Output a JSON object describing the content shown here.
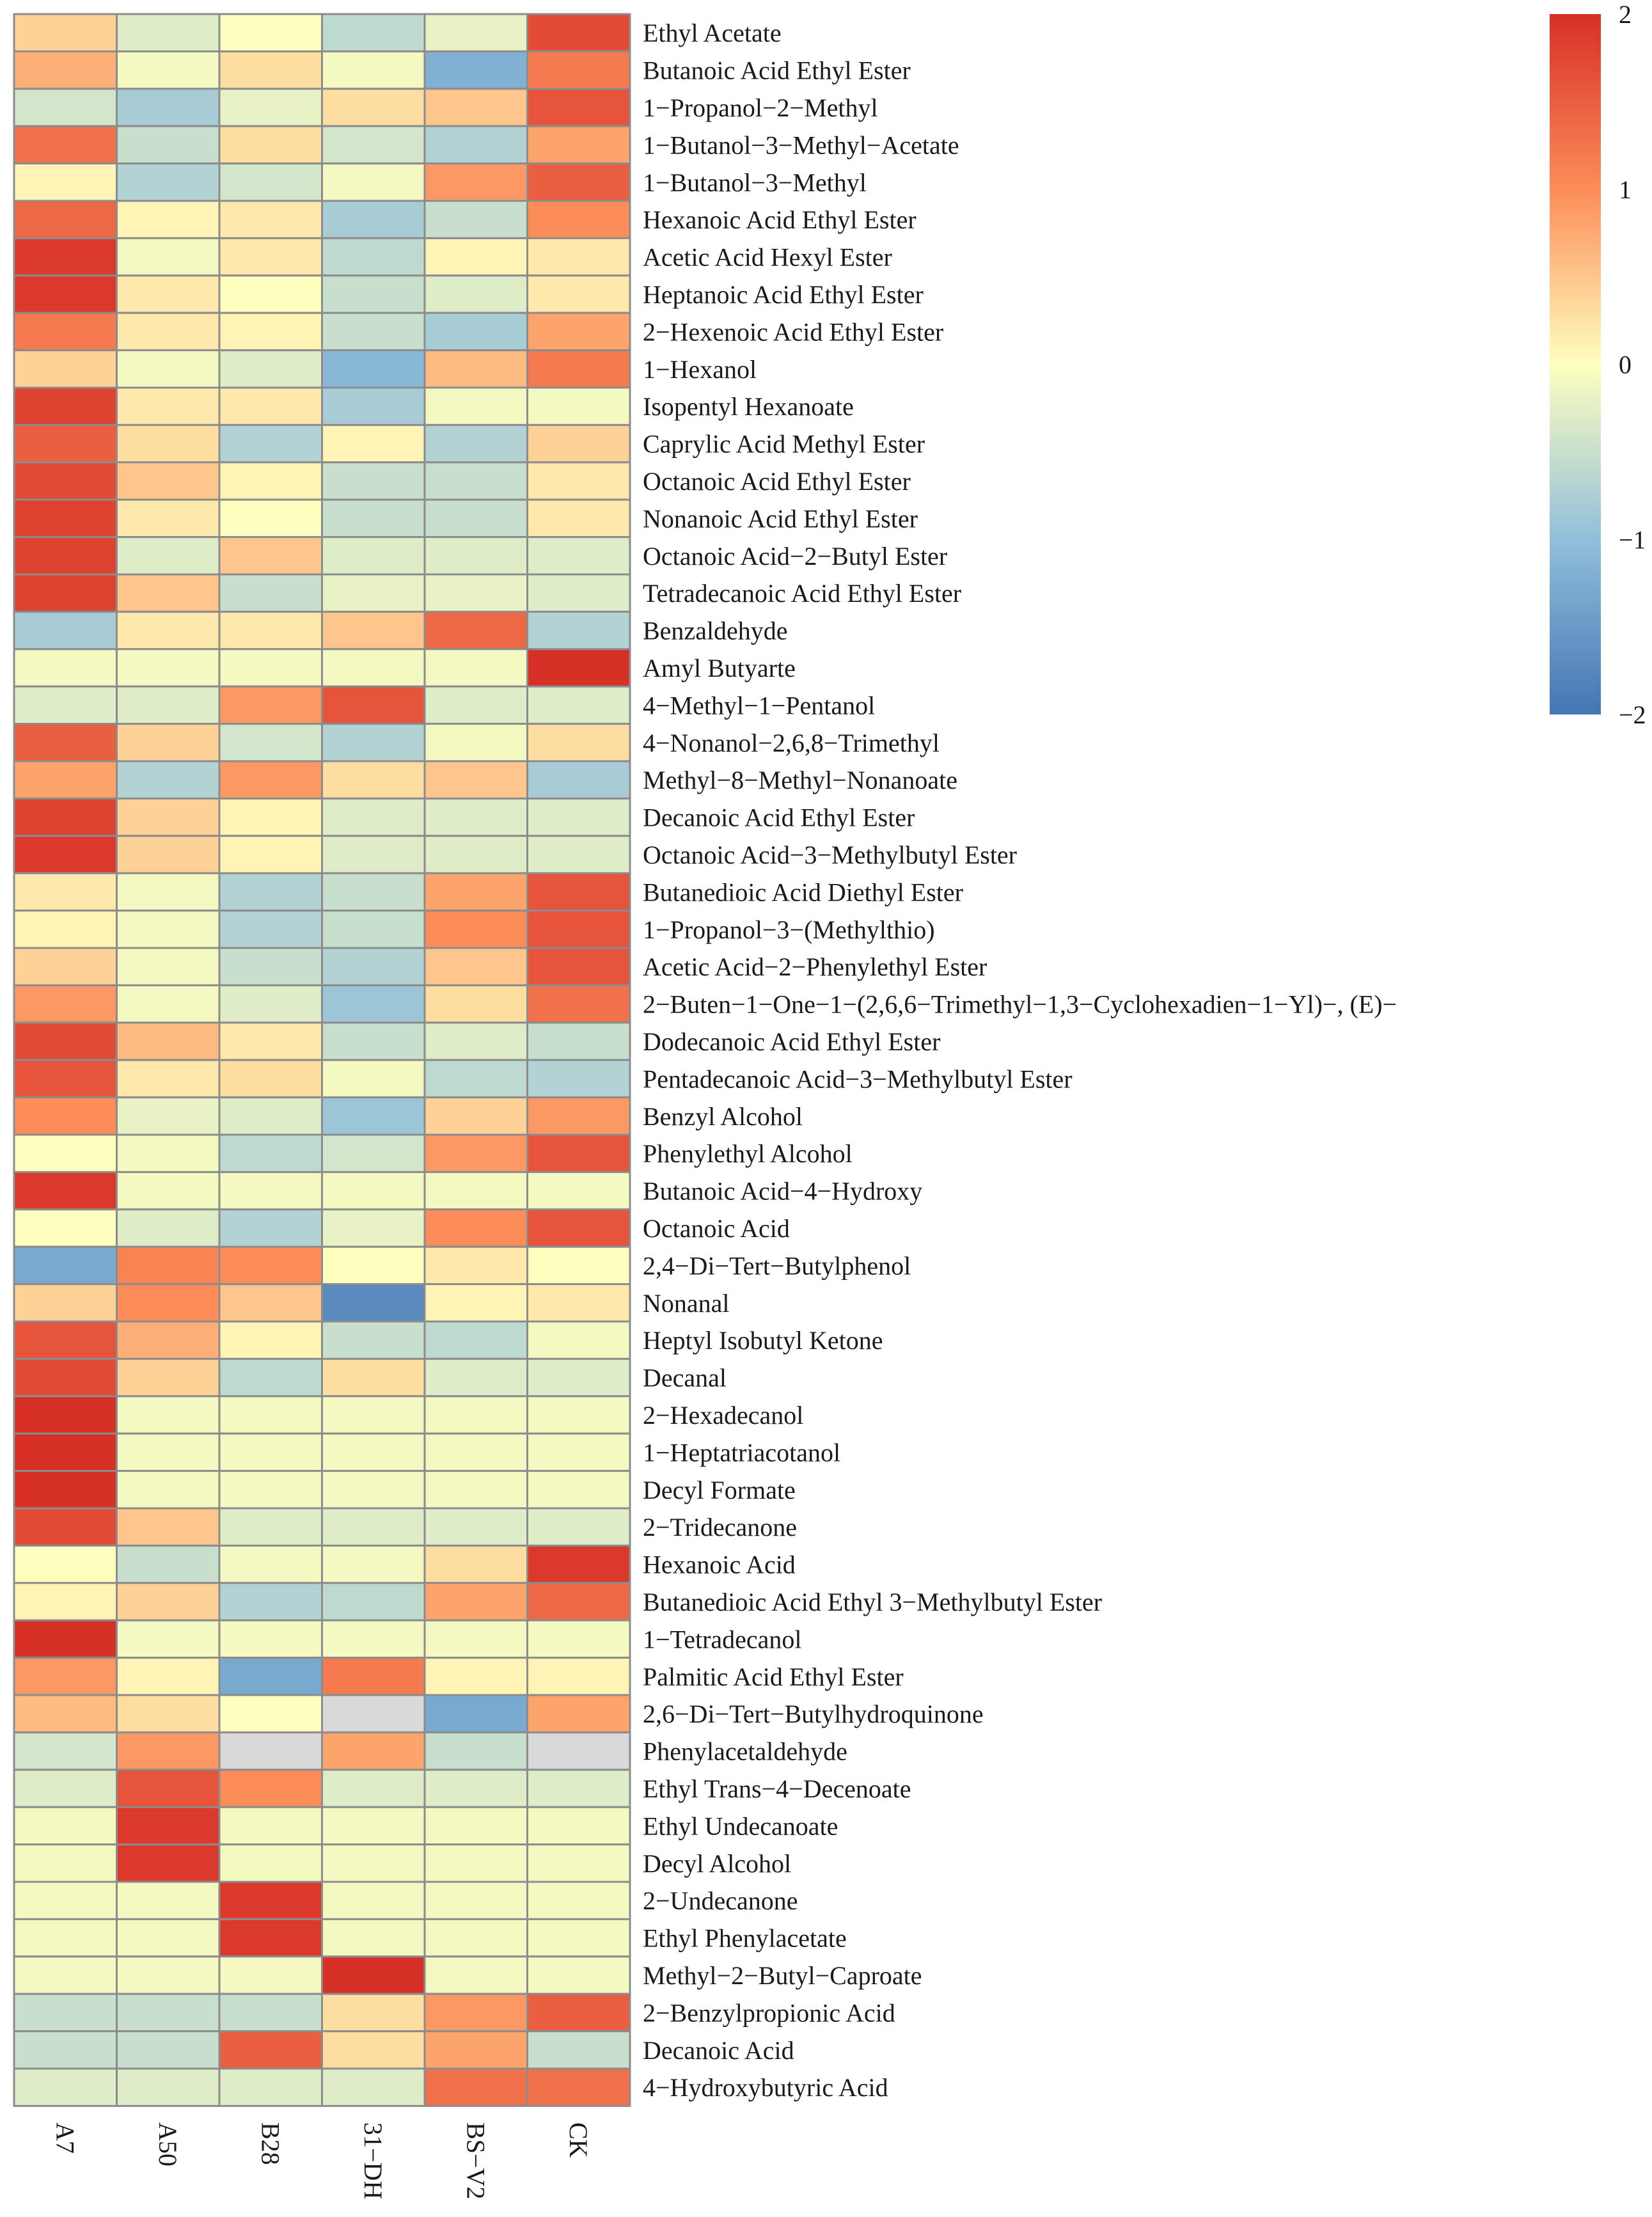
{
  "chart_data": {
    "type": "heatmap",
    "columns": [
      "A7",
      "A50",
      "B28",
      "31−DH",
      "BS−V2",
      "CK"
    ],
    "rows": [
      "Ethyl Acetate",
      "Butanoic Acid Ethyl Ester",
      "1−Propanol−2−Methyl",
      "1−Butanol−3−Methyl−Acetate",
      "1−Butanol−3−Methyl",
      "Hexanoic Acid Ethyl Ester",
      "Acetic Acid Hexyl Ester",
      "Heptanoic Acid Ethyl Ester",
      "2−Hexenoic Acid Ethyl Ester",
      "1−Hexanol",
      "Isopentyl Hexanoate",
      "Caprylic Acid Methyl Ester",
      "Octanoic Acid Ethyl Ester",
      "Nonanoic Acid Ethyl Ester",
      "Octanoic Acid−2−Butyl Ester",
      "Tetradecanoic Acid Ethyl Ester",
      "Benzaldehyde",
      "Amyl Butyarte",
      "4−Methyl−1−Pentanol",
      "4−Nonanol−2,6,8−Trimethyl",
      " Methyl−8−Methyl−Nonanoate",
      "Decanoic Acid Ethyl Ester",
      "Octanoic Acid−3−Methylbutyl Ester",
      "Butanedioic Acid Diethyl Ester",
      "1−Propanol−3−(Methylthio)",
      "Acetic Acid−2−Phenylethyl Ester",
      "2−Buten−1−One−1−(2,6,6−Trimethyl−1,3−Cyclohexadien−1−Yl)−, (E)−",
      "Dodecanoic Acid Ethyl Ester",
      "Pentadecanoic Acid−3−Methylbutyl Ester",
      "Benzyl Alcohol",
      "Phenylethyl Alcohol",
      "Butanoic Acid−4−Hydroxy",
      "Octanoic Acid",
      "2,4−Di−Tert−Butylphenol",
      "Nonanal",
      "Heptyl Isobutyl Ketone",
      "Decanal",
      "2−Hexadecanol",
      "1−Heptatriacotanol",
      "Decyl Formate",
      "2−Tridecanone",
      "Hexanoic Acid",
      "Butanedioic Acid Ethyl 3−Methylbutyl Ester",
      "1−Tetradecanol",
      "Palmitic Acid Ethyl Ester",
      "2,6−Di−Tert−Butylhydroquinone",
      "Phenylacetaldehyde",
      "Ethyl Trans−4−Decenoate",
      "Ethyl Undecanoate",
      "Decyl Alcohol",
      "2−Undecanone",
      "Ethyl Phenylacetate",
      "Methyl−2−Butyl−Caproate",
      "2−Benzylpropionic Acid",
      "Decanoic Acid",
      "4−Hydroxybutyric Acid"
    ],
    "values": [
      [
        0.4,
        -0.3,
        0.0,
        -0.6,
        -0.2,
        1.7
      ],
      [
        0.7,
        -0.1,
        0.3,
        -0.1,
        -1.2,
        1.2
      ],
      [
        -0.4,
        -0.8,
        -0.2,
        0.3,
        0.5,
        1.6
      ],
      [
        1.3,
        -0.5,
        0.3,
        -0.4,
        -0.7,
        0.8
      ],
      [
        0.1,
        -0.7,
        -0.4,
        -0.1,
        0.9,
        1.5
      ],
      [
        1.4,
        0.1,
        0.2,
        -0.8,
        -0.5,
        1.0
      ],
      [
        1.9,
        -0.1,
        0.2,
        -0.6,
        0.1,
        0.2
      ],
      [
        1.9,
        0.2,
        0.0,
        -0.5,
        -0.3,
        0.2
      ],
      [
        1.2,
        0.2,
        0.1,
        -0.5,
        -0.8,
        0.8
      ],
      [
        0.4,
        -0.1,
        -0.3,
        -1.1,
        0.6,
        1.2
      ],
      [
        1.8,
        0.2,
        0.2,
        -0.8,
        -0.1,
        -0.1
      ],
      [
        1.5,
        0.3,
        -0.7,
        0.1,
        -0.7,
        0.4
      ],
      [
        1.7,
        0.5,
        0.1,
        -0.5,
        -0.5,
        0.2
      ],
      [
        1.8,
        0.2,
        0.0,
        -0.5,
        -0.5,
        0.2
      ],
      [
        1.8,
        -0.3,
        0.5,
        -0.3,
        -0.3,
        -0.3
      ],
      [
        1.8,
        0.5,
        -0.5,
        -0.2,
        -0.2,
        -0.3
      ],
      [
        -0.8,
        0.2,
        0.2,
        0.5,
        1.4,
        -0.7
      ],
      [
        -0.1,
        -0.1,
        -0.1,
        -0.1,
        -0.1,
        2.0
      ],
      [
        -0.3,
        -0.3,
        0.9,
        1.6,
        -0.3,
        -0.3
      ],
      [
        1.5,
        0.4,
        -0.4,
        -0.7,
        -0.1,
        0.3
      ],
      [
        0.8,
        -0.7,
        0.9,
        0.3,
        0.5,
        -0.8
      ],
      [
        1.8,
        0.4,
        0.1,
        -0.3,
        -0.3,
        -0.3
      ],
      [
        1.9,
        0.4,
        0.1,
        -0.3,
        -0.3,
        -0.3
      ],
      [
        0.2,
        -0.1,
        -0.7,
        -0.5,
        0.8,
        1.6
      ],
      [
        0.1,
        -0.1,
        -0.7,
        -0.5,
        1.0,
        1.6
      ],
      [
        0.4,
        -0.1,
        -0.5,
        -0.7,
        0.5,
        1.6
      ],
      [
        0.9,
        -0.1,
        -0.3,
        -0.9,
        0.3,
        1.3
      ],
      [
        1.7,
        0.6,
        0.2,
        -0.5,
        -0.3,
        -0.5
      ],
      [
        1.6,
        0.2,
        0.3,
        -0.1,
        -0.6,
        -0.7
      ],
      [
        1.0,
        -0.2,
        -0.3,
        -0.9,
        0.4,
        0.9
      ],
      [
        0.0,
        -0.1,
        -0.6,
        -0.4,
        0.9,
        1.6
      ],
      [
        1.9,
        -0.1,
        -0.1,
        -0.1,
        -0.1,
        -0.1
      ],
      [
        0.0,
        -0.3,
        -0.7,
        -0.2,
        1.0,
        1.6
      ],
      [
        -1.3,
        1.1,
        1.0,
        0.0,
        0.2,
        0.0
      ],
      [
        0.4,
        1.0,
        0.5,
        -1.7,
        0.1,
        0.2
      ],
      [
        1.6,
        0.7,
        0.1,
        -0.5,
        -0.6,
        -0.1
      ],
      [
        1.7,
        0.4,
        -0.6,
        0.3,
        -0.3,
        -0.3
      ],
      [
        2.0,
        -0.1,
        -0.1,
        -0.1,
        -0.1,
        -0.1
      ],
      [
        2.0,
        -0.1,
        -0.1,
        -0.1,
        -0.1,
        -0.1
      ],
      [
        2.0,
        -0.1,
        -0.1,
        -0.1,
        -0.1,
        -0.1
      ],
      [
        1.7,
        0.5,
        -0.3,
        -0.3,
        -0.3,
        -0.3
      ],
      [
        0.0,
        -0.5,
        -0.1,
        -0.1,
        0.3,
        1.9
      ],
      [
        0.1,
        0.4,
        -0.7,
        -0.6,
        0.8,
        1.4
      ],
      [
        2.0,
        -0.1,
        -0.1,
        -0.1,
        -0.1,
        -0.1
      ],
      [
        0.9,
        0.1,
        -1.3,
        1.2,
        0.1,
        0.1
      ],
      [
        0.6,
        0.3,
        0.0,
        null,
        -1.3,
        0.8
      ],
      [
        -0.4,
        0.9,
        null,
        0.8,
        -0.5,
        null
      ],
      [
        -0.3,
        1.6,
        1.0,
        -0.3,
        -0.3,
        -0.3
      ],
      [
        -0.1,
        1.9,
        -0.1,
        -0.1,
        -0.1,
        -0.1
      ],
      [
        -0.1,
        1.9,
        -0.1,
        -0.1,
        -0.1,
        -0.1
      ],
      [
        -0.1,
        -0.1,
        1.9,
        -0.1,
        -0.1,
        -0.1
      ],
      [
        -0.1,
        -0.1,
        1.9,
        -0.1,
        -0.1,
        -0.1
      ],
      [
        -0.1,
        -0.1,
        -0.1,
        2.0,
        -0.1,
        -0.1
      ],
      [
        -0.5,
        -0.5,
        -0.5,
        0.3,
        0.9,
        1.5
      ],
      [
        -0.5,
        -0.5,
        1.5,
        0.3,
        0.8,
        -0.5
      ],
      [
        -0.3,
        -0.3,
        -0.3,
        -0.3,
        1.3,
        1.3
      ]
    ],
    "missing_color": "#d9d9d9",
    "color_scale": {
      "domain": [
        -2,
        -1,
        0,
        1,
        2
      ],
      "colors": [
        "#4575b4",
        "#91bfdb",
        "#ffffbf",
        "#fc8d59",
        "#d73027"
      ]
    },
    "legend": {
      "ticks": [
        "2",
        "1",
        "0",
        "−1",
        "−2"
      ],
      "tick_values": [
        2,
        1,
        0,
        -1,
        -2
      ],
      "placement": "top-right"
    },
    "title": "",
    "xlabel": "",
    "ylabel": ""
  }
}
